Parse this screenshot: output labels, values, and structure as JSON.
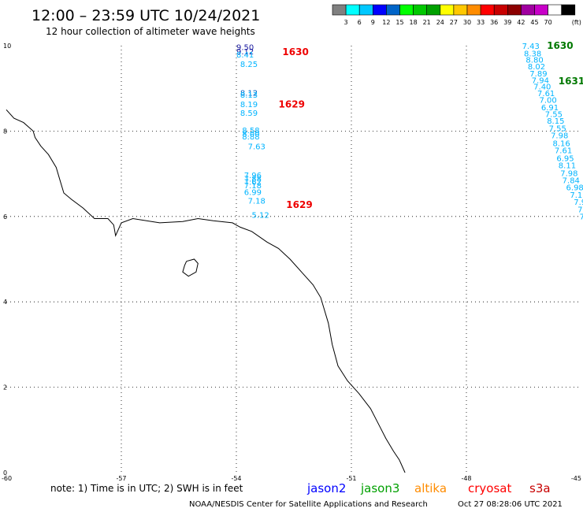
{
  "title": "12:00 – 23:59 UTC 10/24/2021",
  "subtitle": "12 hour collection of altimeter wave heights",
  "map": {
    "lon_range": [
      -60,
      -45
    ],
    "lat_range": [
      0,
      10
    ],
    "x_ticks": [
      "-60",
      "-57",
      "-54",
      "-51",
      "-48",
      "-45"
    ],
    "y_ticks": [
      "0",
      "2",
      "4",
      "6",
      "8",
      "10"
    ]
  },
  "color_scale": {
    "colors": [
      "#808080",
      "#00ffff",
      "#00c8ff",
      "#0000ff",
      "#0064c8",
      "#00ff00",
      "#00c800",
      "#00a000",
      "#ffff00",
      "#ffc800",
      "#ff8c00",
      "#ff0000",
      "#c80000",
      "#8c0000",
      "#a000a0",
      "#c800c8",
      "#ffffff",
      "#000000"
    ],
    "labels": [
      "3",
      "6",
      "9",
      "12",
      "15",
      "18",
      "21",
      "24",
      "27",
      "30",
      "33",
      "36",
      "39",
      "42",
      "45",
      "70"
    ],
    "unit": "(ft)"
  },
  "tracks": [
    {
      "pass_labels": [
        {
          "text": "1630",
          "color": "#ee0000",
          "lon": -52.8,
          "lat": 9.78
        },
        {
          "text": "1629",
          "color": "#ee0000",
          "lon": -52.9,
          "lat": 8.55
        },
        {
          "text": "1629",
          "color": "#ee0000",
          "lon": -52.7,
          "lat": 6.2
        }
      ],
      "points": [
        {
          "v": "9.50",
          "lon": -54.0,
          "lat": 9.9,
          "color": "#1a1aa0"
        },
        {
          "v": "9.12",
          "lon": -54.0,
          "lat": 9.8,
          "color": "#1a1aa0"
        },
        {
          "v": "8.41",
          "lon": -54.0,
          "lat": 9.72,
          "color": "#00b4ff"
        },
        {
          "v": "8.25",
          "lon": -53.9,
          "lat": 9.5,
          "color": "#00b4ff"
        },
        {
          "v": "8.12",
          "lon": -53.9,
          "lat": 8.83,
          "color": "#0064c8"
        },
        {
          "v": "8.13",
          "lon": -53.9,
          "lat": 8.78,
          "color": "#00b4ff"
        },
        {
          "v": "8.19",
          "lon": -53.9,
          "lat": 8.56,
          "color": "#00b4ff"
        },
        {
          "v": "8.59",
          "lon": -53.9,
          "lat": 8.36,
          "color": "#00b4ff"
        },
        {
          "v": "8.58",
          "lon": -53.85,
          "lat": 7.95,
          "color": "#00b4ff"
        },
        {
          "v": "8.00",
          "lon": -53.85,
          "lat": 7.87,
          "color": "#00b4ff"
        },
        {
          "v": "8.88",
          "lon": -53.85,
          "lat": 7.8,
          "color": "#00b4ff"
        },
        {
          "v": "7.63",
          "lon": -53.7,
          "lat": 7.57,
          "color": "#00b4ff"
        },
        {
          "v": "7.96",
          "lon": -53.8,
          "lat": 6.9,
          "color": "#00b4ff"
        },
        {
          "v": "7.88",
          "lon": -53.8,
          "lat": 6.82,
          "color": "#00b4ff"
        },
        {
          "v": "7.62",
          "lon": -53.8,
          "lat": 6.74,
          "color": "#00b4ff"
        },
        {
          "v": "7.18",
          "lon": -53.8,
          "lat": 6.66,
          "color": "#00b4ff"
        },
        {
          "v": "6.99",
          "lon": -53.8,
          "lat": 6.5,
          "color": "#00b4ff"
        },
        {
          "v": "7.18",
          "lon": -53.7,
          "lat": 6.3,
          "color": "#00b4ff"
        },
        {
          "v": "5.12",
          "lon": -53.6,
          "lat": 5.97,
          "color": "#00b4ff"
        }
      ]
    },
    {
      "pass_labels": [
        {
          "text": "1630",
          "color": "#007800",
          "lon": -45.9,
          "lat": 9.93
        },
        {
          "text": "1631",
          "color": "#007800",
          "lon": -45.6,
          "lat": 9.1
        }
      ],
      "points": [
        {
          "v": "7.43",
          "lon": -46.55,
          "lat": 9.93,
          "color": "#00b4ff"
        },
        {
          "v": "8.38",
          "lon": -46.5,
          "lat": 9.75,
          "color": "#00b4ff"
        },
        {
          "v": "8.80",
          "lon": -46.45,
          "lat": 9.6,
          "color": "#00b4ff"
        },
        {
          "v": "8.02",
          "lon": -46.4,
          "lat": 9.45,
          "color": "#00b4ff"
        },
        {
          "v": "7.89",
          "lon": -46.35,
          "lat": 9.28,
          "color": "#00b4ff"
        },
        {
          "v": "7.94",
          "lon": -46.3,
          "lat": 9.12,
          "color": "#00b4ff"
        },
        {
          "v": "7.40",
          "lon": -46.25,
          "lat": 8.98,
          "color": "#00b4ff"
        },
        {
          "v": "7.61",
          "lon": -46.15,
          "lat": 8.82,
          "color": "#00b4ff"
        },
        {
          "v": "7.00",
          "lon": -46.1,
          "lat": 8.66,
          "color": "#00b4ff"
        },
        {
          "v": "6.91",
          "lon": -46.05,
          "lat": 8.49,
          "color": "#00b4ff"
        },
        {
          "v": "7.55",
          "lon": -45.95,
          "lat": 8.33,
          "color": "#00b4ff"
        },
        {
          "v": "8.15",
          "lon": -45.9,
          "lat": 8.17,
          "color": "#00b4ff"
        },
        {
          "v": "7.55",
          "lon": -45.85,
          "lat": 8.0,
          "color": "#00b4ff"
        },
        {
          "v": "7.98",
          "lon": -45.8,
          "lat": 7.83,
          "color": "#00b4ff"
        },
        {
          "v": "8.16",
          "lon": -45.75,
          "lat": 7.65,
          "color": "#00b4ff"
        },
        {
          "v": "7.61",
          "lon": -45.7,
          "lat": 7.48,
          "color": "#00b4ff"
        },
        {
          "v": "6.95",
          "lon": -45.65,
          "lat": 7.3,
          "color": "#00b4ff"
        },
        {
          "v": "8.11",
          "lon": -45.6,
          "lat": 7.13,
          "color": "#00b4ff"
        },
        {
          "v": "7.98",
          "lon": -45.55,
          "lat": 6.95,
          "color": "#00b4ff"
        },
        {
          "v": "7.84",
          "lon": -45.5,
          "lat": 6.78,
          "color": "#00b4ff"
        },
        {
          "v": "6.98",
          "lon": -45.4,
          "lat": 6.61,
          "color": "#00b4ff"
        },
        {
          "v": "7.1",
          "lon": -45.3,
          "lat": 6.44,
          "color": "#00b4ff"
        },
        {
          "v": "7.9",
          "lon": -45.2,
          "lat": 6.27,
          "color": "#00b4ff"
        },
        {
          "v": "7.",
          "lon": -45.1,
          "lat": 6.1,
          "color": "#00b4ff"
        },
        {
          "v": "7",
          "lon": -45.05,
          "lat": 5.93,
          "color": "#00b4ff"
        }
      ]
    }
  ],
  "coastline": [
    [
      -60.0,
      8.5
    ],
    [
      -59.8,
      8.3
    ],
    [
      -59.55,
      8.2
    ],
    [
      -59.3,
      8.0
    ],
    [
      -59.25,
      7.85
    ],
    [
      -59.1,
      7.65
    ],
    [
      -58.9,
      7.45
    ],
    [
      -58.7,
      7.15
    ],
    [
      -58.6,
      6.85
    ],
    [
      -58.5,
      6.55
    ],
    [
      -58.3,
      6.4
    ],
    [
      -58.0,
      6.2
    ],
    [
      -57.7,
      5.95
    ],
    [
      -57.35,
      5.95
    ],
    [
      -57.2,
      5.8
    ],
    [
      -57.15,
      5.55
    ],
    [
      -57.0,
      5.85
    ],
    [
      -56.7,
      5.95
    ],
    [
      -56.0,
      5.85
    ],
    [
      -55.4,
      5.88
    ],
    [
      -55.0,
      5.95
    ],
    [
      -54.6,
      5.9
    ],
    [
      -54.1,
      5.85
    ],
    [
      -53.9,
      5.75
    ],
    [
      -53.6,
      5.65
    ],
    [
      -53.2,
      5.4
    ],
    [
      -52.9,
      5.25
    ],
    [
      -52.6,
      5.0
    ],
    [
      -52.3,
      4.7
    ],
    [
      -52.0,
      4.4
    ],
    [
      -51.8,
      4.1
    ],
    [
      -51.75,
      3.95
    ],
    [
      -51.6,
      3.5
    ],
    [
      -51.5,
      3.0
    ],
    [
      -51.35,
      2.5
    ],
    [
      -51.1,
      2.15
    ],
    [
      -50.8,
      1.85
    ],
    [
      -50.5,
      1.5
    ],
    [
      -50.3,
      1.15
    ],
    [
      -50.1,
      0.8
    ],
    [
      -49.9,
      0.5
    ],
    [
      -49.75,
      0.3
    ],
    [
      -49.6,
      0.0
    ]
  ],
  "island": [
    [
      -55.3,
      4.95
    ],
    [
      -55.1,
      5.0
    ],
    [
      -55.0,
      4.9
    ],
    [
      -55.05,
      4.7
    ],
    [
      -55.25,
      4.6
    ],
    [
      -55.4,
      4.7
    ],
    [
      -55.35,
      4.85
    ],
    [
      -55.3,
      4.95
    ]
  ],
  "footer": {
    "note": "note: 1) Time is in UTC; 2) SWH is in feet",
    "missions": [
      {
        "name": "jason2",
        "color": "#0000ff"
      },
      {
        "name": "jason3",
        "color": "#00a000"
      },
      {
        "name": "altika",
        "color": "#ff8c00"
      },
      {
        "name": "cryosat",
        "color": "#ff0000"
      },
      {
        "name": "s3a",
        "color": "#c80000"
      }
    ],
    "credit": "NOAA/NESDIS Center for Satellite Applications and Research",
    "timestamp": "Oct 27 08:28:06 UTC 2021"
  }
}
